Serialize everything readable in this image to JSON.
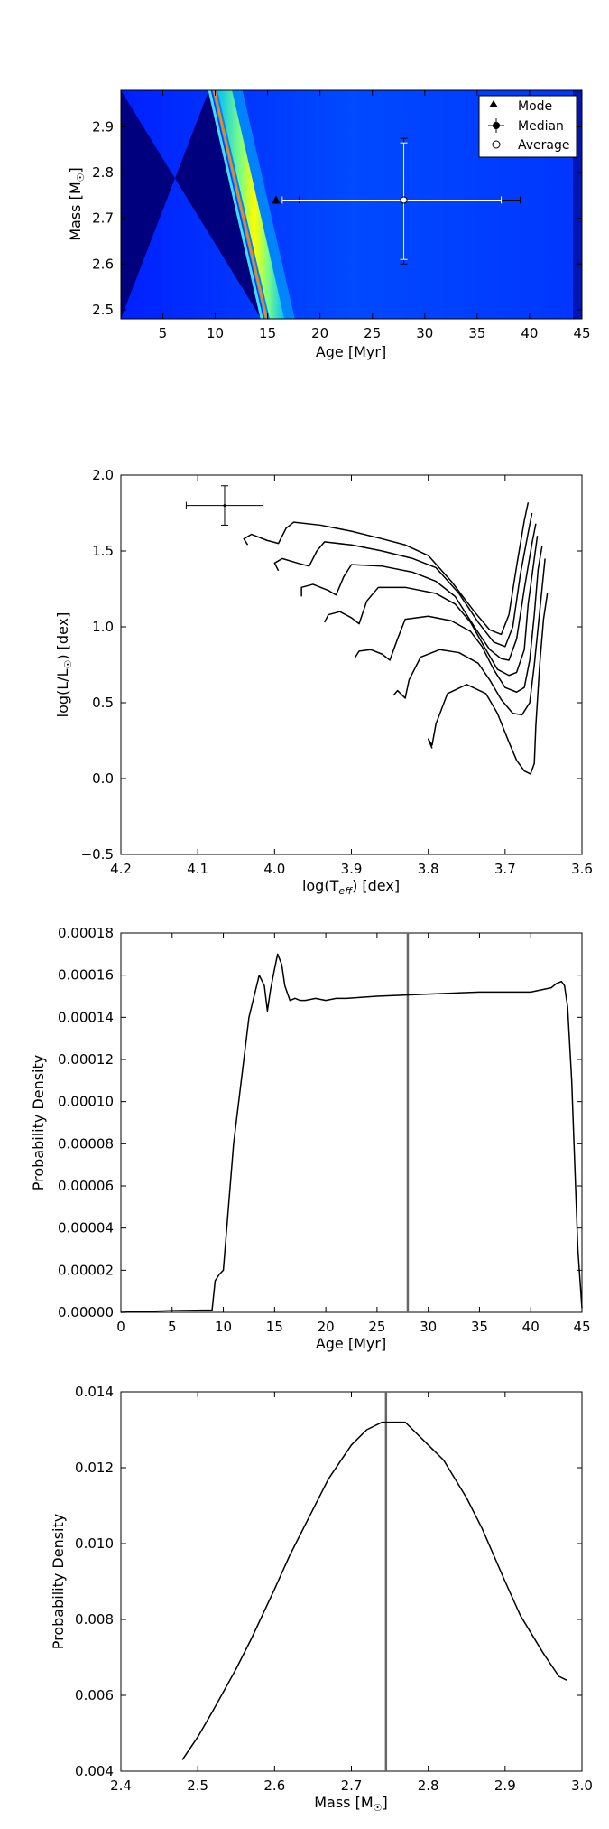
{
  "chart_data": [
    {
      "type": "heatmap",
      "xlabel": "Age [Myr]",
      "ylabel": "Mass [M☉]",
      "xlim": [
        1,
        45
      ],
      "ylim": [
        2.48,
        2.98
      ],
      "xticks": [
        "5",
        "10",
        "15",
        "20",
        "25",
        "30",
        "35",
        "40",
        "45"
      ],
      "yticks": [
        "2.5",
        "2.6",
        "2.7",
        "2.8",
        "2.9"
      ],
      "legend": {
        "placement": "top-right",
        "entries": [
          "Mode",
          "Median",
          "Average"
        ]
      },
      "mode": {
        "age": 15.8,
        "mass": 2.74
      },
      "median": {
        "age": 28,
        "mass": 2.74,
        "age_err": [
          10,
          11.1
        ],
        "mass_err": [
          0.14,
          0.135
        ]
      },
      "average": {
        "age": 28,
        "mass": 2.74,
        "age_err": [
          11.6,
          9.3
        ],
        "mass_err": [
          0.13,
          0.125
        ]
      },
      "colormap": [
        "#00007f",
        "#0000ff",
        "#00bfff",
        "#7fff7f",
        "#ffff00",
        "#ff8000"
      ],
      "grid": false
    },
    {
      "type": "line",
      "xlabel": "log(T_eff) [dex]",
      "ylabel": "log(L/L☉) [dex]",
      "xlim": [
        4.2,
        3.6
      ],
      "ylim": [
        -0.5,
        2.0
      ],
      "xticks": [
        "4.2",
        "4.1",
        "4.0",
        "3.9",
        "3.8",
        "3.7",
        "3.6"
      ],
      "yticks": [
        "−0.5",
        "0.0",
        "0.5",
        "1.0",
        "1.5",
        "2.0"
      ],
      "star": {
        "x": 4.065,
        "y": 1.8,
        "xerr": 0.05,
        "yerr": 0.13
      },
      "series": [
        {
          "points": [
            [
              4.035,
              1.54
            ],
            [
              4.04,
              1.58
            ],
            [
              4.03,
              1.61
            ],
            [
              4.01,
              1.57
            ],
            [
              3.995,
              1.55
            ],
            [
              3.985,
              1.65
            ],
            [
              3.975,
              1.69
            ],
            [
              3.94,
              1.67
            ],
            [
              3.9,
              1.63
            ],
            [
              3.86,
              1.58
            ],
            [
              3.83,
              1.54
            ],
            [
              3.8,
              1.47
            ],
            [
              3.77,
              1.3
            ],
            [
              3.74,
              1.1
            ],
            [
              3.72,
              0.98
            ],
            [
              3.705,
              0.95
            ],
            [
              3.695,
              1.08
            ],
            [
              3.685,
              1.4
            ],
            [
              3.675,
              1.7
            ],
            [
              3.67,
              1.82
            ]
          ]
        },
        {
          "points": [
            [
              3.995,
              1.37
            ],
            [
              4.0,
              1.42
            ],
            [
              3.99,
              1.45
            ],
            [
              3.97,
              1.42
            ],
            [
              3.955,
              1.4
            ],
            [
              3.945,
              1.5
            ],
            [
              3.935,
              1.56
            ],
            [
              3.9,
              1.54
            ],
            [
              3.86,
              1.5
            ],
            [
              3.82,
              1.45
            ],
            [
              3.79,
              1.39
            ],
            [
              3.76,
              1.22
            ],
            [
              3.735,
              1.03
            ],
            [
              3.715,
              0.9
            ],
            [
              3.7,
              0.87
            ],
            [
              3.69,
              1.0
            ],
            [
              3.68,
              1.35
            ],
            [
              3.67,
              1.62
            ],
            [
              3.665,
              1.75
            ]
          ]
        },
        {
          "points": [
            [
              3.965,
              1.2
            ],
            [
              3.965,
              1.26
            ],
            [
              3.95,
              1.28
            ],
            [
              3.93,
              1.24
            ],
            [
              3.92,
              1.21
            ],
            [
              3.91,
              1.33
            ],
            [
              3.9,
              1.41
            ],
            [
              3.86,
              1.4
            ],
            [
              3.82,
              1.36
            ],
            [
              3.79,
              1.3
            ],
            [
              3.765,
              1.2
            ],
            [
              3.74,
              1.0
            ],
            [
              3.72,
              0.85
            ],
            [
              3.705,
              0.79
            ],
            [
              3.695,
              0.78
            ],
            [
              3.685,
              0.92
            ],
            [
              3.675,
              1.25
            ],
            [
              3.665,
              1.55
            ],
            [
              3.66,
              1.68
            ]
          ]
        },
        {
          "points": [
            [
              3.935,
              1.03
            ],
            [
              3.93,
              1.08
            ],
            [
              3.915,
              1.1
            ],
            [
              3.9,
              1.06
            ],
            [
              3.89,
              1.02
            ],
            [
              3.88,
              1.17
            ],
            [
              3.865,
              1.26
            ],
            [
              3.83,
              1.26
            ],
            [
              3.79,
              1.22
            ],
            [
              3.765,
              1.15
            ],
            [
              3.745,
              1.03
            ],
            [
              3.725,
              0.85
            ],
            [
              3.71,
              0.72
            ],
            [
              3.695,
              0.68
            ],
            [
              3.685,
              0.7
            ],
            [
              3.675,
              0.85
            ],
            [
              3.67,
              1.15
            ],
            [
              3.662,
              1.45
            ],
            [
              3.658,
              1.6
            ]
          ]
        },
        {
          "points": [
            [
              3.895,
              0.8
            ],
            [
              3.89,
              0.84
            ],
            [
              3.875,
              0.85
            ],
            [
              3.86,
              0.82
            ],
            [
              3.85,
              0.78
            ],
            [
              3.84,
              0.92
            ],
            [
              3.83,
              1.05
            ],
            [
              3.8,
              1.07
            ],
            [
              3.77,
              1.04
            ],
            [
              3.745,
              0.97
            ],
            [
              3.73,
              0.87
            ],
            [
              3.715,
              0.72
            ],
            [
              3.7,
              0.6
            ],
            [
              3.685,
              0.57
            ],
            [
              3.675,
              0.6
            ],
            [
              3.668,
              0.78
            ],
            [
              3.662,
              1.08
            ],
            [
              3.657,
              1.38
            ],
            [
              3.652,
              1.53
            ]
          ]
        },
        {
          "points": [
            [
              3.845,
              0.55
            ],
            [
              3.84,
              0.58
            ],
            [
              3.83,
              0.53
            ],
            [
              3.825,
              0.65
            ],
            [
              3.81,
              0.8
            ],
            [
              3.785,
              0.85
            ],
            [
              3.76,
              0.83
            ],
            [
              3.735,
              0.76
            ],
            [
              3.72,
              0.65
            ],
            [
              3.705,
              0.52
            ],
            [
              3.69,
              0.43
            ],
            [
              3.678,
              0.42
            ],
            [
              3.668,
              0.5
            ],
            [
              3.662,
              0.75
            ],
            [
              3.655,
              1.1
            ],
            [
              3.65,
              1.35
            ],
            [
              3.648,
              1.45
            ]
          ]
        },
        {
          "points": [
            [
              3.795,
              0.2
            ],
            [
              3.8,
              0.26
            ],
            [
              3.795,
              0.22
            ],
            [
              3.79,
              0.36
            ],
            [
              3.775,
              0.56
            ],
            [
              3.75,
              0.62
            ],
            [
              3.725,
              0.56
            ],
            [
              3.71,
              0.43
            ],
            [
              3.695,
              0.24
            ],
            [
              3.685,
              0.12
            ],
            [
              3.675,
              0.05
            ],
            [
              3.667,
              0.03
            ],
            [
              3.662,
              0.1
            ],
            [
              3.66,
              0.35
            ],
            [
              3.655,
              0.75
            ],
            [
              3.65,
              1.05
            ],
            [
              3.645,
              1.22
            ]
          ]
        }
      ],
      "grid": false
    },
    {
      "type": "line",
      "xlabel": "Age [Myr]",
      "ylabel": "Probability Density",
      "xlim": [
        0,
        45
      ],
      "ylim": [
        0,
        0.00018
      ],
      "xticks": [
        "0",
        "5",
        "10",
        "15",
        "20",
        "25",
        "30",
        "35",
        "40",
        "45"
      ],
      "yticks": [
        "0.00000",
        "0.00002",
        "0.00004",
        "0.00006",
        "0.00008",
        "0.00010",
        "0.00012",
        "0.00014",
        "0.00016",
        "0.00018"
      ],
      "vline": 28,
      "x": [
        0,
        3,
        5,
        8,
        8.9,
        9.2,
        9.6,
        10,
        10.5,
        11,
        11.5,
        12,
        12.5,
        13,
        13.5,
        14,
        14.3,
        14.6,
        15,
        15.3,
        15.7,
        16,
        16.5,
        17,
        17.5,
        18,
        19,
        20,
        21,
        22,
        25,
        30,
        35,
        40,
        41,
        42,
        42.5,
        43,
        43.3,
        43.6,
        44,
        44.3,
        44.6,
        45
      ],
      "values": [
        0,
        5e-07,
        8e-07,
        1e-06,
        1e-06,
        1.5e-05,
        1.8e-05,
        2e-05,
        5e-05,
        8e-05,
        0.0001,
        0.00012,
        0.00014,
        0.00015,
        0.00016,
        0.000155,
        0.000143,
        0.000153,
        0.000163,
        0.00017,
        0.000165,
        0.000155,
        0.000148,
        0.000149,
        0.000148,
        0.000148,
        0.000149,
        0.000148,
        0.000149,
        0.000149,
        0.00015,
        0.000151,
        0.000152,
        0.000152,
        0.000153,
        0.000154,
        0.000156,
        0.000157,
        0.000155,
        0.000145,
        0.00011,
        7e-05,
        3e-05,
        2e-06
      ],
      "grid": false
    },
    {
      "type": "line",
      "xlabel": "Mass [M☉]",
      "ylabel": "Probability Density",
      "xlim": [
        2.4,
        3.0
      ],
      "ylim": [
        0.004,
        0.014
      ],
      "xticks": [
        "2.4",
        "2.5",
        "2.6",
        "2.7",
        "2.8",
        "2.9",
        "3.0"
      ],
      "yticks": [
        "0.004",
        "0.006",
        "0.008",
        "0.010",
        "0.012",
        "0.014"
      ],
      "vline": 2.745,
      "x": [
        2.48,
        2.5,
        2.52,
        2.55,
        2.57,
        2.6,
        2.62,
        2.65,
        2.67,
        2.7,
        2.72,
        2.74,
        2.75,
        2.77,
        2.78,
        2.8,
        2.82,
        2.85,
        2.87,
        2.9,
        2.92,
        2.95,
        2.97,
        2.98
      ],
      "values": [
        0.0043,
        0.0049,
        0.0056,
        0.0067,
        0.0075,
        0.0088,
        0.0097,
        0.0109,
        0.0117,
        0.0126,
        0.013,
        0.0132,
        0.0132,
        0.0132,
        0.013,
        0.0126,
        0.0122,
        0.0112,
        0.0104,
        0.009,
        0.0081,
        0.0071,
        0.0065,
        0.0064
      ],
      "grid": false
    }
  ]
}
